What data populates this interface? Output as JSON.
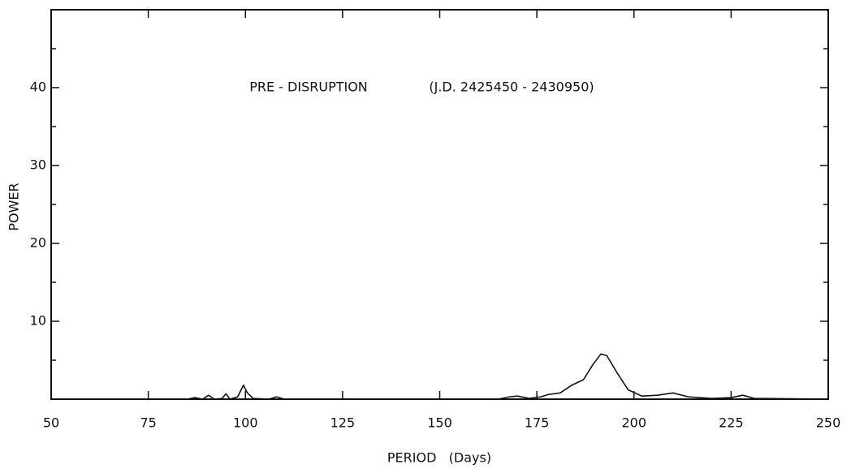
{
  "chart_data": {
    "type": "line",
    "annotations": [
      "PRE - DISRUPTION",
      "(J.D. 2425450 - 2430950)"
    ],
    "xlabel": "PERIOD   (Days)",
    "ylabel": "POWER",
    "xlim": [
      50,
      250
    ],
    "ylim": [
      0,
      50
    ],
    "xticks": [
      50,
      75,
      100,
      125,
      150,
      175,
      200,
      225,
      250
    ],
    "yticks": [
      10,
      20,
      30,
      40
    ],
    "yminorticks": [
      5,
      15,
      25,
      35,
      45
    ],
    "grid": false,
    "x": [
      50,
      85,
      87,
      89,
      90.5,
      92,
      94,
      95,
      96,
      98,
      99.5,
      100.5,
      102,
      106,
      108,
      110,
      165,
      168,
      170,
      173,
      176,
      178,
      181,
      184,
      187,
      189.5,
      191.5,
      193,
      195.5,
      198.5,
      202,
      206,
      210,
      214,
      220,
      225,
      228,
      231,
      250
    ],
    "series": [
      {
        "color": "#111111",
        "values": [
          0,
          0,
          0.2,
          0,
          0.5,
          0,
          0.1,
          0.7,
          0,
          0.3,
          1.8,
          0.8,
          0.1,
          0,
          0.3,
          0,
          0,
          0.3,
          0.4,
          0.1,
          0.3,
          0.6,
          0.8,
          1.8,
          2.5,
          4.5,
          5.8,
          5.6,
          3.5,
          1.2,
          0.4,
          0.5,
          0.8,
          0.3,
          0.1,
          0.2,
          0.5,
          0.1,
          0
        ]
      }
    ]
  }
}
